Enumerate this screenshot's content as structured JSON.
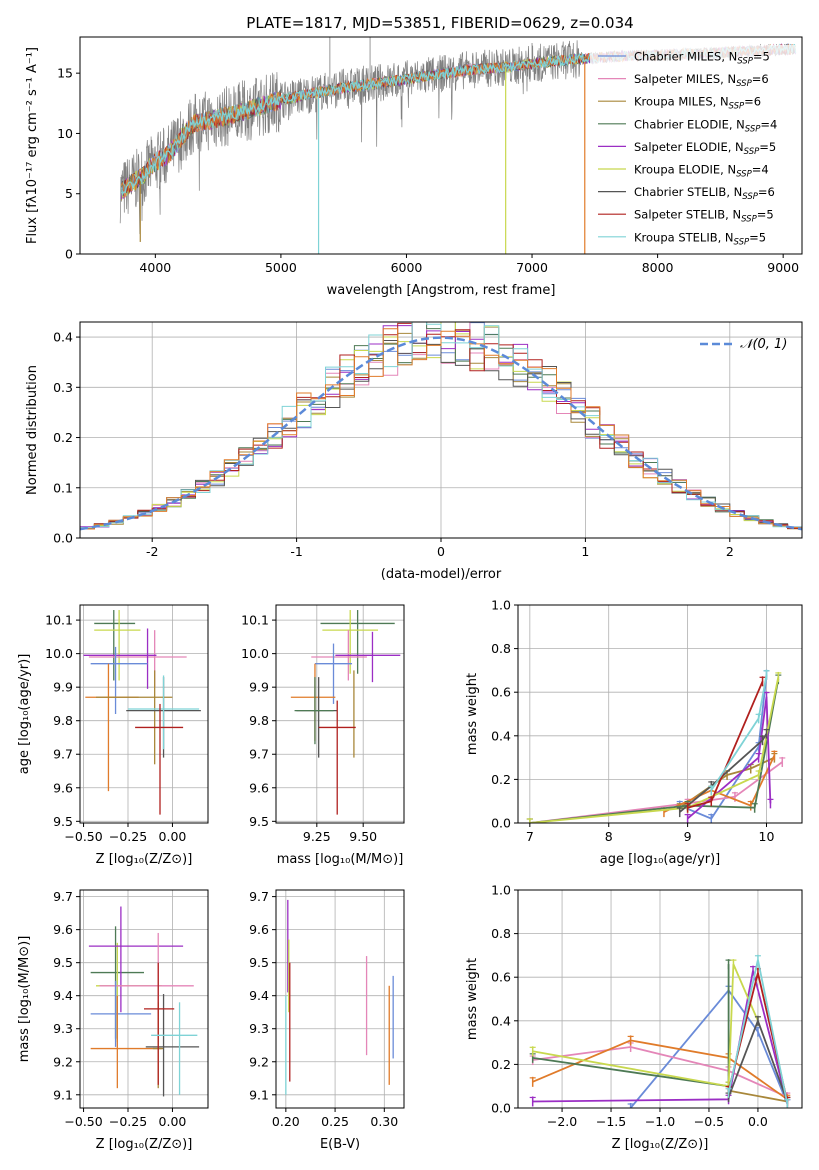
{
  "title": "PLATE=1817, MJD=53851, FIBERID=0629, z=0.034",
  "colors": {
    "chabrier_miles": "#6a8bd8",
    "salpeter_miles": "#e486b8",
    "kroupa_miles": "#a8873a",
    "chabrier_elodie": "#4e7a55",
    "salpeter_elodie": "#9b2ec4",
    "kroupa_elodie": "#c8d84e",
    "chabrier_stelib": "#555555",
    "salpeter_stelib": "#b0201e",
    "kroupa_stelib": "#7fd3d6",
    "extra_orange": "#e07b2a",
    "gauss": "#5b8ad8",
    "grid": "#b0b0b0",
    "data": "#808080"
  },
  "chart_data": [
    {
      "id": "spectrum",
      "type": "line",
      "title": "PLATE=1817, MJD=53851, FIBERID=0629, z=0.034",
      "xlabel": "wavelength [Angstrom, rest frame]",
      "ylabel": "Flux [fλ10⁻¹⁷ erg cm⁻² s⁻¹ A⁻¹]",
      "xlim": [
        3400,
        9150
      ],
      "ylim": [
        0,
        18
      ],
      "xticks": [
        4000,
        5000,
        6000,
        7000,
        8000,
        9000
      ],
      "yticks": [
        0,
        5,
        10,
        15
      ],
      "grid": false,
      "legend_loc": "upper right",
      "legend": [
        {
          "label": "Chabrier MILES, N",
          "sub": "SSP",
          "suffix": "=5"
        },
        {
          "label": "Salpeter MILES, N",
          "sub": "SSP",
          "suffix": "=6"
        },
        {
          "label": "Kroupa MILES, N",
          "sub": "SSP",
          "suffix": "=6"
        },
        {
          "label": "Chabrier ELODIE, N",
          "sub": "SSP",
          "suffix": "=4"
        },
        {
          "label": "Salpeter ELODIE, N",
          "sub": "SSP",
          "suffix": "=5"
        },
        {
          "label": "Kroupa ELODIE, N",
          "sub": "SSP",
          "suffix": "=4"
        },
        {
          "label": "Chabrier STELIB, N",
          "sub": "SSP",
          "suffix": "=6"
        },
        {
          "label": "Salpeter STELIB, N",
          "sub": "SSP",
          "suffix": "=5"
        },
        {
          "label": "Kroupa STELIB, N",
          "sub": "SSP",
          "suffix": "=5"
        }
      ],
      "continuum": {
        "wavelength": [
          3700,
          3900,
          4000,
          4100,
          4300,
          4600,
          5000,
          5500,
          6000,
          6500,
          6800,
          7100,
          7400,
          7700,
          8000,
          8500,
          9100
        ],
        "flux": [
          5.0,
          6.5,
          7.6,
          8.2,
          10.8,
          11.5,
          12.8,
          13.8,
          14.5,
          15.3,
          15.5,
          15.9,
          16.2,
          16.4,
          16.5,
          16.7,
          17.0
        ]
      },
      "model_dropouts": [
        {
          "wavelength": 3880,
          "to": 1.0
        },
        {
          "wavelength": 5300,
          "to": 0.0
        },
        {
          "wavelength": 6790,
          "to": 0.0
        },
        {
          "wavelength": 7420,
          "to": 0.0
        }
      ]
    },
    {
      "id": "residuals",
      "type": "histogram",
      "xlabel": "(data-model)/error",
      "ylabel": "Normed distribution",
      "xlim": [
        -2.5,
        2.5
      ],
      "ylim": [
        0,
        0.43
      ],
      "xticks": [
        -2,
        -1,
        0,
        1,
        2
      ],
      "yticks": [
        0.0,
        0.1,
        0.2,
        0.3,
        0.4
      ],
      "grid": true,
      "legend_loc": "upper right",
      "legend_label": "𝒩(0, 1)",
      "bin_width": 0.1,
      "overlay": {
        "type": "gaussian",
        "mean": 0,
        "sigma": 1
      }
    },
    {
      "id": "age-z",
      "type": "errorbar",
      "xlabel": "Z [log₁₀(Z/Z⊙)]",
      "ylabel": "age  [log₁₀(age/yr)]",
      "xlim": [
        -0.52,
        0.2
      ],
      "ylim": [
        9.495,
        10.145
      ],
      "xticks": [
        -0.5,
        -0.25,
        0.0
      ],
      "xticklabels": [
        "−0.50",
        "−0.25",
        "0.00"
      ],
      "yticks": [
        9.5,
        9.6,
        9.7,
        9.8,
        9.9,
        10.0,
        10.1
      ],
      "grid": true,
      "points": [
        {
          "x": -0.33,
          "xerr": [
            0.11,
            0.12
          ],
          "y": 10.09,
          "yerr": [
            0.17,
            0.04
          ],
          "color": "#4e7a55"
        },
        {
          "x": -0.3,
          "xerr": [
            0.14,
            0.12
          ],
          "y": 10.07,
          "yerr": [
            0.15,
            0.06
          ],
          "color": "#c8d84e"
        },
        {
          "x": -0.1,
          "xerr": [
            0.37,
            0.18
          ],
          "y": 9.99,
          "yerr": [
            0.09,
            0.08
          ],
          "color": "#e486b8"
        },
        {
          "x": -0.14,
          "xerr": [
            0.36,
            0.05
          ],
          "y": 9.995,
          "yerr": [
            0.1,
            0.08
          ],
          "color": "#9b2ec4"
        },
        {
          "x": -0.32,
          "xerr": [
            0.14,
            0.18
          ],
          "y": 9.97,
          "yerr": [
            0.15,
            0.05
          ],
          "color": "#6a8bd8"
        },
        {
          "x": -0.36,
          "xerr": [
            0.13,
            0.17
          ],
          "y": 9.87,
          "yerr": [
            0.28,
            0.1
          ],
          "color": "#e07b2a"
        },
        {
          "x": -0.1,
          "xerr": [
            0.33,
            0.1
          ],
          "y": 9.87,
          "yerr": [
            0.2,
            0.08
          ],
          "color": "#a8873a"
        },
        {
          "x": -0.05,
          "xerr": [
            0.21,
            0.21
          ],
          "y": 9.83,
          "yerr": [
            0.14,
            0.1
          ],
          "color": "#555555"
        },
        {
          "x": -0.05,
          "xerr": [
            0.2,
            0.2
          ],
          "y": 9.835,
          "yerr": [
            0.12,
            0.1
          ],
          "color": "#7fd3d6"
        },
        {
          "x": -0.07,
          "xerr": [
            0.14,
            0.13
          ],
          "y": 9.78,
          "yerr": [
            0.26,
            0.07
          ],
          "color": "#b0201e"
        }
      ]
    },
    {
      "id": "age-mass",
      "type": "errorbar",
      "xlabel": "mass [log₁₀(M/M⊙)]",
      "ylabel": "",
      "xlim": [
        9.03,
        9.72
      ],
      "ylim": [
        9.495,
        10.145
      ],
      "xticks": [
        9.25,
        9.5
      ],
      "xticklabels": [
        "9.25",
        "9.50"
      ],
      "yticks": [
        9.5,
        9.6,
        9.7,
        9.8,
        9.9,
        10.0,
        10.1
      ],
      "grid": true,
      "points": [
        {
          "x": 9.47,
          "xerr": [
            0.2,
            0.2
          ],
          "y": 10.09,
          "yerr": [
            0.15,
            0.04
          ],
          "color": "#4e7a55"
        },
        {
          "x": 9.43,
          "xerr": [
            0.15,
            0.15
          ],
          "y": 10.07,
          "yerr": [
            0.13,
            0.06
          ],
          "color": "#c8d84e"
        },
        {
          "x": 9.42,
          "xerr": [
            0.2,
            0.1
          ],
          "y": 9.99,
          "yerr": [
            0.07,
            0.08
          ],
          "color": "#e486b8"
        },
        {
          "x": 9.55,
          "xerr": [
            0.2,
            0.15
          ],
          "y": 9.995,
          "yerr": [
            0.08,
            0.07
          ],
          "color": "#9b2ec4"
        },
        {
          "x": 9.34,
          "xerr": [
            0.1,
            0.1
          ],
          "y": 9.97,
          "yerr": [
            0.12,
            0.06
          ],
          "color": "#6a8bd8"
        },
        {
          "x": 9.24,
          "xerr": [
            0.13,
            0.11
          ],
          "y": 9.87,
          "yerr": [
            0.13,
            0.1
          ],
          "color": "#e07b2a"
        },
        {
          "x": 9.45,
          "xerr": [
            0.0,
            0.0
          ],
          "y": 9.87,
          "yerr": [
            0.18,
            0.08
          ],
          "color": "#a8873a"
        },
        {
          "x": 9.26,
          "xerr": [
            0.12,
            0.1
          ],
          "y": 9.83,
          "yerr": [
            0.14,
            0.1
          ],
          "color": "#555555"
        },
        {
          "x": 9.24,
          "xerr": [
            0.11,
            0.1
          ],
          "y": 9.83,
          "yerr": [
            0.1,
            0.1
          ],
          "color": "#4e7a55"
        },
        {
          "x": 9.36,
          "xerr": [
            0.1,
            0.1
          ],
          "y": 9.78,
          "yerr": [
            0.26,
            0.08
          ],
          "color": "#b0201e"
        }
      ]
    },
    {
      "id": "weight-age",
      "type": "line",
      "xlabel": "age  [log₁₀(age/yr)]",
      "ylabel": "mass weight",
      "xlim": [
        6.85,
        10.45
      ],
      "ylim": [
        0,
        1.0
      ],
      "xticks": [
        7,
        8,
        9,
        10
      ],
      "yticks": [
        0.0,
        0.2,
        0.4,
        0.6,
        0.8,
        1.0
      ],
      "grid": true,
      "series": [
        {
          "color": "#6a8bd8",
          "x": [
            8.9,
            9.3,
            9.9,
            10.0
          ],
          "y": [
            0.08,
            0.02,
            0.35,
            0.68
          ]
        },
        {
          "color": "#e486b8",
          "x": [
            7.0,
            9.0,
            9.6,
            10.2
          ],
          "y": [
            0.0,
            0.09,
            0.12,
            0.28
          ]
        },
        {
          "color": "#a8873a",
          "x": [
            8.9,
            9.5,
            9.8,
            10.1
          ],
          "y": [
            0.07,
            0.22,
            0.25,
            0.3
          ]
        },
        {
          "color": "#e07b2a",
          "x": [
            8.7,
            9.3,
            9.8,
            10.1
          ],
          "y": [
            0.05,
            0.15,
            0.08,
            0.31
          ]
        },
        {
          "color": "#4e7a55",
          "x": [
            7.0,
            9.0,
            9.85,
            10.15
          ],
          "y": [
            0.0,
            0.08,
            0.07,
            0.66
          ]
        },
        {
          "color": "#9b2ec4",
          "x": [
            9.0,
            9.9,
            10.0,
            10.05
          ],
          "y": [
            0.02,
            0.3,
            0.58,
            0.09
          ]
        },
        {
          "color": "#c8d84e",
          "x": [
            7.0,
            9.0,
            9.9,
            10.15
          ],
          "y": [
            0.0,
            0.07,
            0.22,
            0.67
          ]
        },
        {
          "color": "#555555",
          "x": [
            8.9,
            9.3,
            9.95,
            10.0
          ],
          "y": [
            0.05,
            0.17,
            0.38,
            0.41
          ]
        },
        {
          "color": "#b0201e",
          "x": [
            9.0,
            9.3,
            9.95
          ],
          "y": [
            0.07,
            0.1,
            0.65
          ]
        },
        {
          "color": "#7fd3d6",
          "x": [
            9.3,
            9.9,
            10.0
          ],
          "y": [
            0.15,
            0.48,
            0.68
          ]
        }
      ]
    },
    {
      "id": "mass-z",
      "type": "errorbar",
      "xlabel": "Z [log₁₀(Z/Z⊙)]",
      "ylabel": "mass [log₁₀(M/M⊙)]",
      "xlim": [
        -0.52,
        0.2
      ],
      "ylim": [
        9.06,
        9.72
      ],
      "xticks": [
        -0.5,
        -0.25,
        0.0
      ],
      "xticklabels": [
        "−0.50",
        "−0.25",
        "0.00"
      ],
      "yticks": [
        9.1,
        9.2,
        9.3,
        9.4,
        9.5,
        9.6,
        9.7
      ],
      "grid": true,
      "points": [
        {
          "x": -0.32,
          "xerr": [
            0.14,
            0.16
          ],
          "y": 9.47,
          "yerr": [
            0.2,
            0.14
          ],
          "color": "#4e7a55"
        },
        {
          "x": -0.31,
          "xerr": [
            0.12,
            0.25
          ],
          "y": 9.43,
          "yerr": [
            0.17,
            0.13
          ],
          "color": "#c8d84e"
        },
        {
          "x": -0.29,
          "xerr": [
            0.18,
            0.35
          ],
          "y": 9.55,
          "yerr": [
            0.2,
            0.12
          ],
          "color": "#9b2ec4"
        },
        {
          "x": -0.08,
          "xerr": [
            0.33,
            0.2
          ],
          "y": 9.43,
          "yerr": [
            0.17,
            0.16
          ],
          "color": "#e486b8"
        },
        {
          "x": -0.32,
          "xerr": [
            0.14,
            0.2
          ],
          "y": 9.345,
          "yerr": [
            0.1,
            0.1
          ],
          "color": "#6a8bd8"
        },
        {
          "x": -0.31,
          "xerr": [
            0.15,
            0.25
          ],
          "y": 9.24,
          "yerr": [
            0.12,
            0.16
          ],
          "color": "#e07b2a"
        },
        {
          "x": -0.08,
          "xerr": [
            0.03,
            0.03
          ],
          "y": 9.24,
          "yerr": [
            0.12,
            0.14
          ],
          "color": "#a8873a"
        },
        {
          "x": -0.05,
          "xerr": [
            0.1,
            0.2
          ],
          "y": 9.245,
          "yerr": [
            0.15,
            0.16
          ],
          "color": "#555555"
        },
        {
          "x": -0.08,
          "xerr": [
            0.08,
            0.09
          ],
          "y": 9.36,
          "yerr": [
            0.23,
            0.14
          ],
          "color": "#b0201e"
        },
        {
          "x": 0.04,
          "xerr": [
            0.16,
            0.1
          ],
          "y": 9.28,
          "yerr": [
            0.18,
            0.1
          ],
          "color": "#7fd3d6"
        }
      ]
    },
    {
      "id": "mass-ebv",
      "type": "errorbar",
      "xlabel": "E(B-V)",
      "ylabel": "",
      "xlim": [
        0.19,
        0.32
      ],
      "ylim": [
        9.06,
        9.72
      ],
      "xticks": [
        0.2,
        0.25,
        0.3
      ],
      "xticklabels": [
        "0.20",
        "0.25",
        "0.30"
      ],
      "yticks": [
        9.1,
        9.2,
        9.3,
        9.4,
        9.5,
        9.6,
        9.7
      ],
      "grid": true,
      "points": [
        {
          "x": 0.2,
          "xerr": [
            0,
            0
          ],
          "y": 9.3,
          "yerr": [
            0.2,
            0.1
          ],
          "color": "#7fd3d6"
        },
        {
          "x": 0.202,
          "xerr": [
            0,
            0
          ],
          "y": 9.55,
          "yerr": [
            0.14,
            0.14
          ],
          "color": "#9b2ec4"
        },
        {
          "x": 0.203,
          "xerr": [
            0,
            0
          ],
          "y": 9.47,
          "yerr": [
            0.12,
            0.1
          ],
          "color": "#c8d84e"
        },
        {
          "x": 0.204,
          "xerr": [
            0,
            0
          ],
          "y": 9.36,
          "yerr": [
            0.22,
            0.14
          ],
          "color": "#b0201e"
        },
        {
          "x": 0.282,
          "xerr": [
            0,
            0
          ],
          "y": 9.37,
          "yerr": [
            0.15,
            0.15
          ],
          "color": "#e486b8"
        },
        {
          "x": 0.305,
          "xerr": [
            0,
            0
          ],
          "y": 9.28,
          "yerr": [
            0.15,
            0.15
          ],
          "color": "#e07b2a"
        },
        {
          "x": 0.309,
          "xerr": [
            0,
            0
          ],
          "y": 9.34,
          "yerr": [
            0.13,
            0.12
          ],
          "color": "#6a8bd8"
        }
      ]
    },
    {
      "id": "weight-z",
      "type": "line",
      "xlabel": "Z [log₁₀(Z/Z⊙)]",
      "ylabel": "mass weight",
      "xlim": [
        -2.45,
        0.45
      ],
      "ylim": [
        0,
        1.0
      ],
      "xticks": [
        -2.0,
        -1.5,
        -1.0,
        -0.5,
        0.0
      ],
      "xticklabels": [
        "−2.0",
        "−1.5",
        "−1.0",
        "−0.5",
        "0.0"
      ],
      "yticks": [
        0.0,
        0.2,
        0.4,
        0.6,
        0.8,
        1.0
      ],
      "grid": true,
      "series": [
        {
          "color": "#6a8bd8",
          "x": [
            -1.3,
            -0.3,
            0.0,
            0.3
          ],
          "y": [
            0.0,
            0.54,
            0.35,
            0.02
          ]
        },
        {
          "color": "#e486b8",
          "x": [
            -2.3,
            -1.3,
            -0.3,
            0.3
          ],
          "y": [
            0.22,
            0.28,
            0.17,
            0.05
          ]
        },
        {
          "color": "#a8873a",
          "x": [
            -0.3,
            0.3
          ],
          "y": [
            0.08,
            0.03
          ]
        },
        {
          "color": "#e07b2a",
          "x": [
            -2.3,
            -1.3,
            -0.3,
            0.3
          ],
          "y": [
            0.12,
            0.31,
            0.23,
            0.04
          ]
        },
        {
          "color": "#4e7a55",
          "x": [
            -2.3,
            -0.3,
            -0.3
          ],
          "y": [
            0.23,
            0.1,
            0.66
          ]
        },
        {
          "color": "#9b2ec4",
          "x": [
            -2.3,
            -0.3,
            -0.05,
            0.3
          ],
          "y": [
            0.03,
            0.04,
            0.63,
            0.02
          ]
        },
        {
          "color": "#c8d84e",
          "x": [
            -2.3,
            -0.3,
            -0.25,
            0.0
          ],
          "y": [
            0.26,
            0.1,
            0.66,
            0.4
          ]
        },
        {
          "color": "#555555",
          "x": [
            -0.3,
            0.0,
            0.3
          ],
          "y": [
            0.05,
            0.4,
            0.03
          ]
        },
        {
          "color": "#b0201e",
          "x": [
            -0.3,
            0.0,
            0.3
          ],
          "y": [
            0.08,
            0.62,
            0.03
          ]
        },
        {
          "color": "#7fd3d6",
          "x": [
            -0.3,
            0.0,
            0.3
          ],
          "y": [
            0.07,
            0.68,
            0.02
          ]
        }
      ]
    }
  ]
}
